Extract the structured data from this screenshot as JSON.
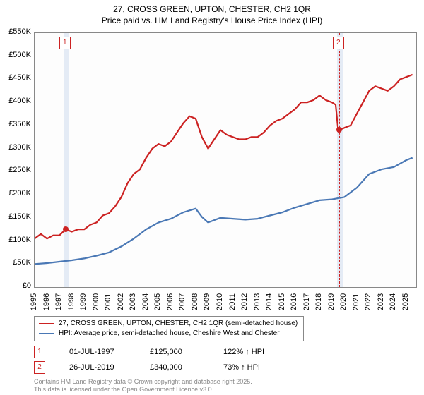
{
  "title_line1": "27, CROSS GREEN, UPTON, CHESTER, CH2 1QR",
  "title_line2": "Price paid vs. HM Land Registry's House Price Index (HPI)",
  "chart": {
    "type": "line",
    "background_color": "#fdfdfd",
    "grid_color": "#888888",
    "shade_color": "rgba(180,200,230,0.35)",
    "marker_color": "#cc2222",
    "x_years": [
      1995,
      1996,
      1997,
      1998,
      1999,
      2000,
      2001,
      2002,
      2003,
      2004,
      2005,
      2006,
      2007,
      2008,
      2009,
      2010,
      2011,
      2012,
      2013,
      2014,
      2015,
      2016,
      2017,
      2018,
      2019,
      2020,
      2021,
      2022,
      2023,
      2024,
      2025
    ],
    "y_ticks": [
      "£0",
      "£50K",
      "£100K",
      "£150K",
      "£200K",
      "£250K",
      "£300K",
      "£350K",
      "£400K",
      "£450K",
      "£500K",
      "£550K"
    ],
    "y_min": 0,
    "y_max": 550,
    "series": [
      {
        "label": "27, CROSS GREEN, UPTON, CHESTER, CH2 1QR (semi-detached house)",
        "color": "#cc2222",
        "line_width": 2.2,
        "data": [
          [
            1995,
            105
          ],
          [
            1995.5,
            115
          ],
          [
            1996,
            105
          ],
          [
            1996.5,
            112
          ],
          [
            1997,
            112
          ],
          [
            1997.5,
            125
          ],
          [
            1998,
            120
          ],
          [
            1998.5,
            125
          ],
          [
            1999,
            125
          ],
          [
            1999.5,
            135
          ],
          [
            2000,
            140
          ],
          [
            2000.5,
            155
          ],
          [
            2001,
            160
          ],
          [
            2001.5,
            175
          ],
          [
            2002,
            195
          ],
          [
            2002.5,
            225
          ],
          [
            2003,
            245
          ],
          [
            2003.5,
            255
          ],
          [
            2004,
            280
          ],
          [
            2004.5,
            300
          ],
          [
            2005,
            310
          ],
          [
            2005.5,
            305
          ],
          [
            2006,
            315
          ],
          [
            2006.5,
            335
          ],
          [
            2007,
            355
          ],
          [
            2007.5,
            370
          ],
          [
            2008,
            365
          ],
          [
            2008.5,
            325
          ],
          [
            2009,
            300
          ],
          [
            2009.5,
            320
          ],
          [
            2010,
            340
          ],
          [
            2010.5,
            330
          ],
          [
            2011,
            325
          ],
          [
            2011.5,
            320
          ],
          [
            2012,
            320
          ],
          [
            2012.5,
            325
          ],
          [
            2013,
            325
          ],
          [
            2013.5,
            335
          ],
          [
            2014,
            350
          ],
          [
            2014.5,
            360
          ],
          [
            2015,
            365
          ],
          [
            2015.5,
            375
          ],
          [
            2016,
            385
          ],
          [
            2016.5,
            400
          ],
          [
            2017,
            400
          ],
          [
            2017.5,
            405
          ],
          [
            2018,
            415
          ],
          [
            2018.5,
            405
          ],
          [
            2019,
            400
          ],
          [
            2019.3,
            395
          ],
          [
            2019.5,
            340
          ],
          [
            2019.57,
            340
          ],
          [
            2020,
            345
          ],
          [
            2020.5,
            350
          ],
          [
            2021,
            375
          ],
          [
            2021.5,
            400
          ],
          [
            2022,
            425
          ],
          [
            2022.5,
            435
          ],
          [
            2023,
            430
          ],
          [
            2023.5,
            425
          ],
          [
            2024,
            435
          ],
          [
            2024.5,
            450
          ],
          [
            2025,
            455
          ],
          [
            2025.5,
            460
          ]
        ]
      },
      {
        "label": "HPI: Average price, semi-detached house, Cheshire West and Chester",
        "color": "#4a78b5",
        "line_width": 2.2,
        "data": [
          [
            1995,
            50
          ],
          [
            1996,
            52
          ],
          [
            1997,
            55
          ],
          [
            1998,
            58
          ],
          [
            1999,
            62
          ],
          [
            2000,
            68
          ],
          [
            2001,
            75
          ],
          [
            2002,
            88
          ],
          [
            2003,
            105
          ],
          [
            2004,
            125
          ],
          [
            2005,
            140
          ],
          [
            2006,
            148
          ],
          [
            2007,
            162
          ],
          [
            2008,
            170
          ],
          [
            2008.5,
            152
          ],
          [
            2009,
            140
          ],
          [
            2010,
            150
          ],
          [
            2011,
            148
          ],
          [
            2012,
            146
          ],
          [
            2013,
            148
          ],
          [
            2014,
            155
          ],
          [
            2015,
            162
          ],
          [
            2016,
            172
          ],
          [
            2017,
            180
          ],
          [
            2018,
            188
          ],
          [
            2019,
            190
          ],
          [
            2020,
            195
          ],
          [
            2021,
            215
          ],
          [
            2022,
            245
          ],
          [
            2023,
            255
          ],
          [
            2024,
            260
          ],
          [
            2025,
            275
          ],
          [
            2025.5,
            280
          ]
        ]
      }
    ],
    "sale_markers": [
      {
        "num": "1",
        "year": 1997.5,
        "price": 125,
        "shade_start": 1997.4,
        "shade_end": 1997.8
      },
      {
        "num": "2",
        "year": 2019.57,
        "price": 340,
        "shade_start": 2019.4,
        "shade_end": 2019.85
      }
    ]
  },
  "legend": {
    "row1": "27, CROSS GREEN, UPTON, CHESTER, CH2 1QR (semi-detached house)",
    "row2": "HPI: Average price, semi-detached house, Cheshire West and Chester"
  },
  "sales_table": [
    {
      "num": "1",
      "date": "01-JUL-1997",
      "price": "£125,000",
      "vs_hpi": "122% ↑ HPI"
    },
    {
      "num": "2",
      "date": "26-JUL-2019",
      "price": "£340,000",
      "vs_hpi": "73% ↑ HPI"
    }
  ],
  "footnote_line1": "Contains HM Land Registry data © Crown copyright and database right 2025.",
  "footnote_line2": "This data is licensed under the Open Government Licence v3.0."
}
